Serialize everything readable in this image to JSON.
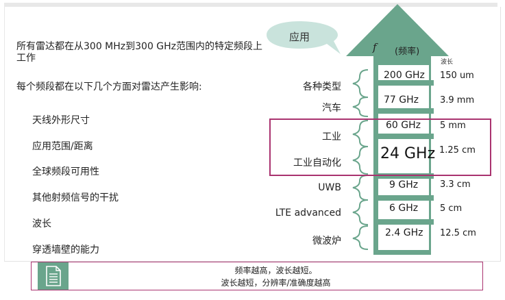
{
  "intro": "所有雷达都在从300 MHz到300 GHz范围内的特定频段上工作",
  "subtitle": "每个频段都在以下几个方面对雷达产生影响:",
  "factors": [
    "天线外形尺寸",
    "应用范围/距离",
    "全球频段可用性",
    "其他射频信号的干扰",
    "波长",
    "穿透墙壁的能力"
  ],
  "bubble_label": "应用",
  "arrow": {
    "f_symbol": "f",
    "frequency_label": "(频率)",
    "wavelength_header": "波长"
  },
  "bands": [
    {
      "application": "各种类型",
      "frequency": "200 GHz",
      "wavelength": "150 um"
    },
    {
      "application": "汽车",
      "frequency": "77 GHz",
      "wavelength": "3.9 mm"
    },
    {
      "application": "工业",
      "frequency": "60 GHz",
      "wavelength": "5 mm"
    },
    {
      "application": "工业自动化",
      "frequency": "24 GHz",
      "wavelength": "1.25 cm"
    },
    {
      "application": "UWB",
      "frequency": "9 GHz",
      "wavelength": "3.3 cm"
    },
    {
      "application": "LTE advanced",
      "frequency": "6 GHz",
      "wavelength": "5 cm"
    },
    {
      "application": "微波炉",
      "frequency": "2.4 GHz",
      "wavelength": "12.5 cm"
    }
  ],
  "note": {
    "line1": "频率越高，波长越短。",
    "line2": "波长越短，分辨率/准确度越高",
    "icon": "document-icon"
  },
  "colors": {
    "arrow_green": "#6aa58c",
    "highlight": "#a9326f",
    "bubble": "#c9e3dc"
  }
}
